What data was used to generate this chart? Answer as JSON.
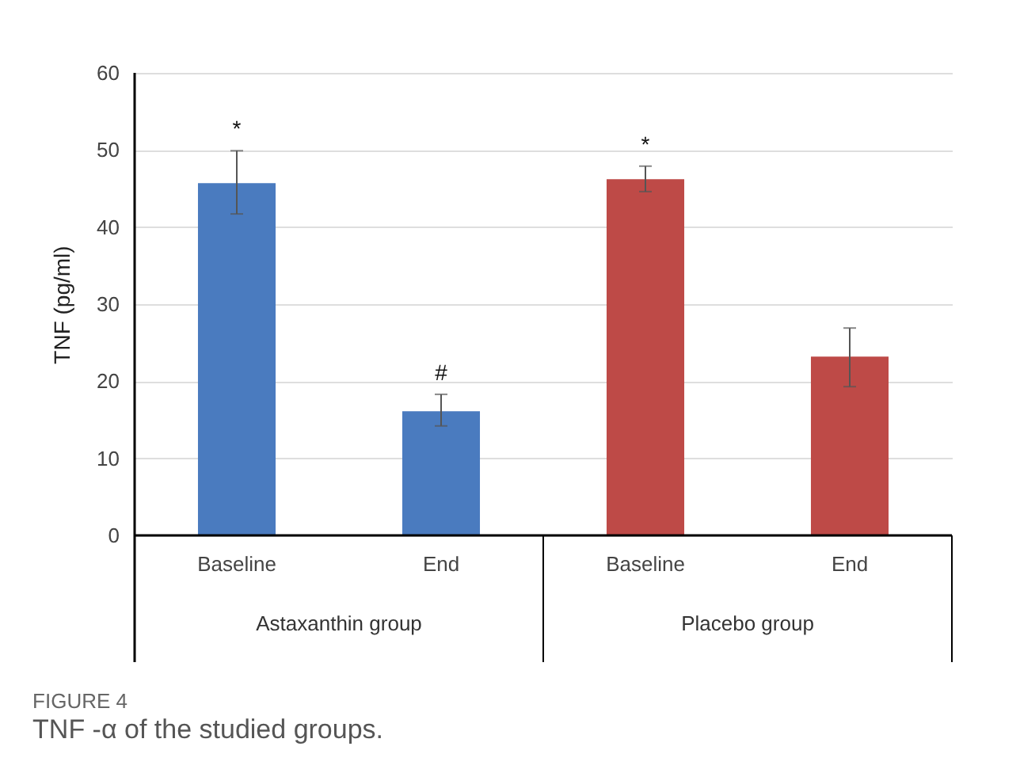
{
  "chart_data": {
    "type": "bar",
    "title": "FIGURE 4",
    "subtitle": "TNF -α of the studied groups.",
    "ylabel": "TNF (pg/ml)",
    "categories": [
      "Baseline",
      "End",
      "Baseline",
      "End"
    ],
    "values": [
      45.7,
      16.1,
      46.2,
      23.2
    ],
    "colors": [
      "#4a7bbf",
      "#4a7bbf",
      "#be4a47",
      "#be4a47"
    ],
    "errors": [
      [
        41.7,
        49.9
      ],
      [
        14.2,
        18.3
      ],
      [
        44.6,
        47.9
      ],
      [
        19.3,
        26.9
      ]
    ],
    "value_labels": [
      "*",
      "#",
      "*",
      null
    ],
    "annotations": [
      "Astaxanthin group",
      "Placebo group"
    ],
    "ylim": [
      0,
      60
    ],
    "yticks": [
      0,
      10,
      20,
      30,
      40,
      50,
      60
    ],
    "grid": "y"
  }
}
